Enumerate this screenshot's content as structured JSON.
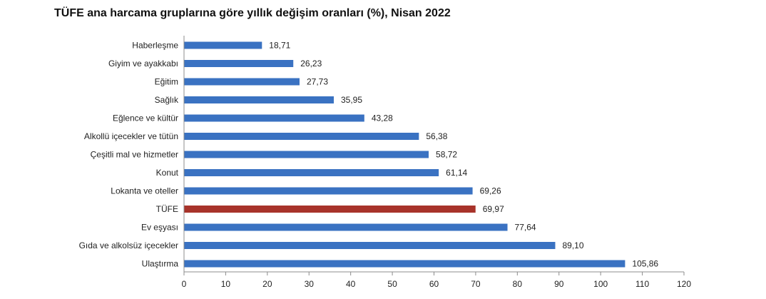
{
  "colors": {
    "bar": "#3a72c2",
    "highlight": "#a8332a",
    "axis": "#8c8c8c",
    "text": "#222222"
  },
  "chart_data": {
    "type": "bar",
    "orientation": "horizontal",
    "title": "TÜFE ana harcama gruplarına göre yıllık değişim oranları (%), Nisan 2022",
    "categories": [
      "Haberleşme",
      "Giyim ve ayakkabı",
      "Eğitim",
      "Sağlık",
      "Eğlence ve kültür",
      "Alkollü içecekler ve tütün",
      "Çeşitli mal ve hizmetler",
      "Konut",
      "Lokanta ve oteller",
      "TÜFE",
      "Ev eşyası",
      "Gıda ve alkolsüz içecekler",
      "Ulaştırma"
    ],
    "values": [
      18.71,
      26.23,
      27.73,
      35.95,
      43.28,
      56.38,
      58.72,
      61.14,
      69.26,
      69.97,
      77.64,
      89.1,
      105.86
    ],
    "value_labels": [
      "18,71",
      "26,23",
      "27,73",
      "35,95",
      "43,28",
      "56,38",
      "58,72",
      "61,14",
      "69,26",
      "69,97",
      "77,64",
      "89,10",
      "105,86"
    ],
    "highlight_category": "TÜFE",
    "xlim": [
      0,
      120
    ],
    "xticks": [
      "0",
      "10",
      "20",
      "30",
      "40",
      "50",
      "60",
      "70",
      "80",
      "90",
      "100",
      "110",
      "120"
    ],
    "grid": false,
    "legend": "none"
  }
}
